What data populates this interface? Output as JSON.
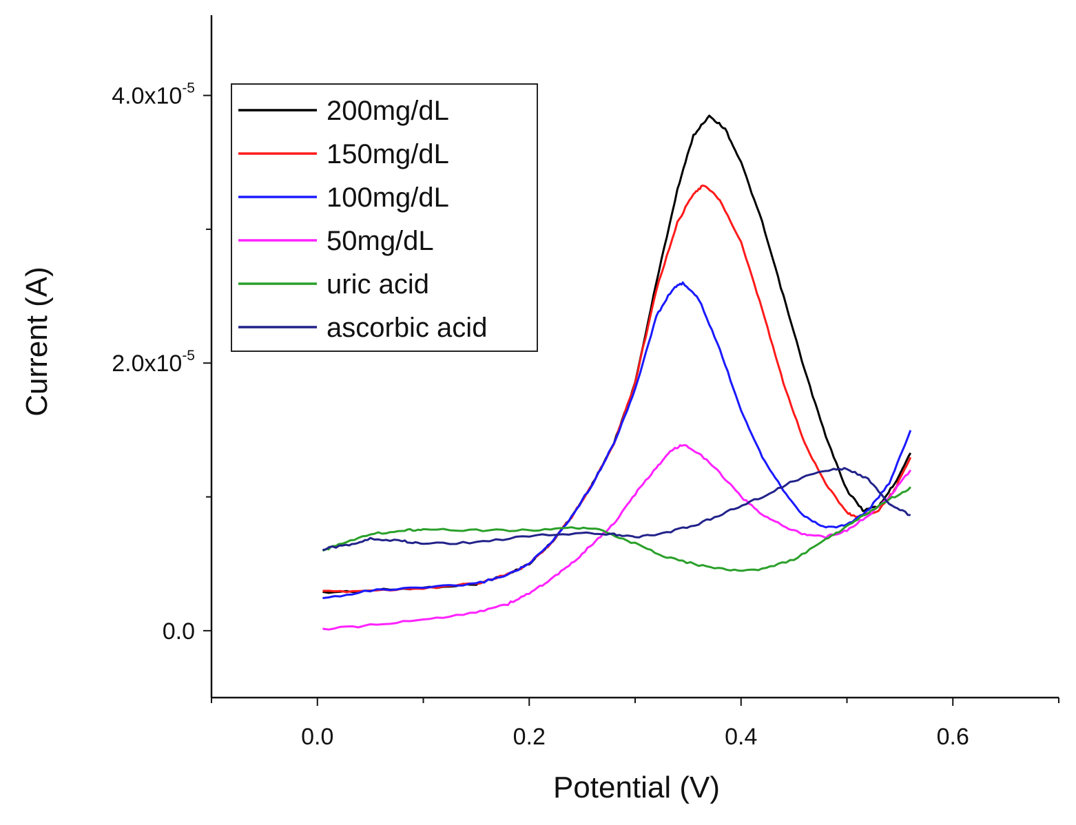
{
  "chart_data": {
    "type": "line",
    "title": "",
    "xlabel": "Potential (V)",
    "ylabel": "Current (A)",
    "xlim": [
      -0.1,
      0.7
    ],
    "ylim": [
      -5e-06,
      4.6e-05
    ],
    "x_ticks": [
      {
        "value": 0.0,
        "label": "0.0"
      },
      {
        "value": 0.2,
        "label": "0.2"
      },
      {
        "value": 0.4,
        "label": "0.4"
      },
      {
        "value": 0.6,
        "label": "0.6"
      }
    ],
    "y_ticks": [
      {
        "value": 0.0,
        "mantissa": "0.0",
        "exponent": ""
      },
      {
        "value": 2e-05,
        "mantissa": "2.0x10",
        "exponent": "-5"
      },
      {
        "value": 4e-05,
        "mantissa": "4.0x10",
        "exponent": "-5"
      }
    ],
    "grid": false,
    "legend_position": "top-left",
    "series": [
      {
        "name": "200mg/dL",
        "color": "#000000",
        "points": [
          [
            0.005,
            2.85e-06
          ],
          [
            0.05,
            3e-06
          ],
          [
            0.1,
            3.2e-06
          ],
          [
            0.15,
            3.5e-06
          ],
          [
            0.18,
            4.2e-06
          ],
          [
            0.2,
            5e-06
          ],
          [
            0.22,
            6.5e-06
          ],
          [
            0.24,
            8.5e-06
          ],
          [
            0.26,
            1.1e-05
          ],
          [
            0.28,
            1.4e-05
          ],
          [
            0.3,
            1.85e-05
          ],
          [
            0.32,
            2.6e-05
          ],
          [
            0.34,
            3.3e-05
          ],
          [
            0.355,
            3.7e-05
          ],
          [
            0.37,
            3.85e-05
          ],
          [
            0.385,
            3.75e-05
          ],
          [
            0.4,
            3.5e-05
          ],
          [
            0.42,
            3.05e-05
          ],
          [
            0.44,
            2.5e-05
          ],
          [
            0.46,
            1.95e-05
          ],
          [
            0.48,
            1.45e-05
          ],
          [
            0.5,
            1.05e-05
          ],
          [
            0.515,
            9e-06
          ],
          [
            0.53,
            9.3e-06
          ],
          [
            0.545,
            1.1e-05
          ],
          [
            0.56,
            1.33e-05
          ]
        ]
      },
      {
        "name": "150mg/dL",
        "color": "#ff1a1a",
        "points": [
          [
            0.005,
            2.9e-06
          ],
          [
            0.05,
            3e-06
          ],
          [
            0.1,
            3.2e-06
          ],
          [
            0.15,
            3.5e-06
          ],
          [
            0.18,
            4.2e-06
          ],
          [
            0.2,
            5e-06
          ],
          [
            0.22,
            6.5e-06
          ],
          [
            0.24,
            8.5e-06
          ],
          [
            0.26,
            1.1e-05
          ],
          [
            0.28,
            1.4e-05
          ],
          [
            0.3,
            1.85e-05
          ],
          [
            0.32,
            2.55e-05
          ],
          [
            0.34,
            3.05e-05
          ],
          [
            0.355,
            3.27e-05
          ],
          [
            0.365,
            3.33e-05
          ],
          [
            0.38,
            3.22e-05
          ],
          [
            0.4,
            2.9e-05
          ],
          [
            0.42,
            2.4e-05
          ],
          [
            0.44,
            1.85e-05
          ],
          [
            0.46,
            1.4e-05
          ],
          [
            0.48,
            1.1e-05
          ],
          [
            0.5,
            8.8e-06
          ],
          [
            0.51,
            8.5e-06
          ],
          [
            0.53,
            9e-06
          ],
          [
            0.545,
            1.05e-05
          ],
          [
            0.56,
            1.3e-05
          ]
        ]
      },
      {
        "name": "100mg/dL",
        "color": "#1a1aff",
        "points": [
          [
            0.005,
            2.4e-06
          ],
          [
            0.05,
            3e-06
          ],
          [
            0.1,
            3.2e-06
          ],
          [
            0.15,
            3.5e-06
          ],
          [
            0.18,
            4.2e-06
          ],
          [
            0.2,
            5e-06
          ],
          [
            0.22,
            6.5e-06
          ],
          [
            0.24,
            8.5e-06
          ],
          [
            0.26,
            1.1e-05
          ],
          [
            0.28,
            1.4e-05
          ],
          [
            0.3,
            1.8e-05
          ],
          [
            0.32,
            2.35e-05
          ],
          [
            0.335,
            2.55e-05
          ],
          [
            0.345,
            2.6e-05
          ],
          [
            0.36,
            2.48e-05
          ],
          [
            0.38,
            2.1e-05
          ],
          [
            0.4,
            1.65e-05
          ],
          [
            0.42,
            1.3e-05
          ],
          [
            0.44,
            1.05e-05
          ],
          [
            0.46,
            8.5e-06
          ],
          [
            0.48,
            7.7e-06
          ],
          [
            0.5,
            7.9e-06
          ],
          [
            0.52,
            9e-06
          ],
          [
            0.54,
            1.1e-05
          ],
          [
            0.56,
            1.5e-05
          ]
        ]
      },
      {
        "name": "50mg/dL",
        "color": "#ff22ff",
        "points": [
          [
            0.005,
            1e-07
          ],
          [
            0.05,
            4e-07
          ],
          [
            0.1,
            8e-07
          ],
          [
            0.15,
            1.4e-06
          ],
          [
            0.18,
            2e-06
          ],
          [
            0.2,
            2.8e-06
          ],
          [
            0.22,
            3.8e-06
          ],
          [
            0.24,
            5e-06
          ],
          [
            0.26,
            6.5e-06
          ],
          [
            0.28,
            8e-06
          ],
          [
            0.3,
            1.02e-05
          ],
          [
            0.32,
            1.22e-05
          ],
          [
            0.335,
            1.35e-05
          ],
          [
            0.345,
            1.39e-05
          ],
          [
            0.36,
            1.33e-05
          ],
          [
            0.38,
            1.18e-05
          ],
          [
            0.4,
            1e-05
          ],
          [
            0.42,
            8.7e-06
          ],
          [
            0.44,
            7.8e-06
          ],
          [
            0.46,
            7.2e-06
          ],
          [
            0.48,
            7e-06
          ],
          [
            0.5,
            7.5e-06
          ],
          [
            0.52,
            8.6e-06
          ],
          [
            0.54,
            1e-05
          ],
          [
            0.56,
            1.2e-05
          ]
        ]
      },
      {
        "name": "uric acid",
        "color": "#2aa02a",
        "points": [
          [
            0.005,
            5.9e-06
          ],
          [
            0.02,
            6.5e-06
          ],
          [
            0.05,
            7.2e-06
          ],
          [
            0.08,
            7.5e-06
          ],
          [
            0.1,
            7.6e-06
          ],
          [
            0.15,
            7.5e-06
          ],
          [
            0.2,
            7.5e-06
          ],
          [
            0.24,
            7.7e-06
          ],
          [
            0.27,
            7.5e-06
          ],
          [
            0.3,
            6.5e-06
          ],
          [
            0.33,
            5.5e-06
          ],
          [
            0.36,
            4.9e-06
          ],
          [
            0.39,
            4.5e-06
          ],
          [
            0.42,
            4.6e-06
          ],
          [
            0.45,
            5.3e-06
          ],
          [
            0.48,
            6.8e-06
          ],
          [
            0.5,
            7.8e-06
          ],
          [
            0.52,
            8.8e-06
          ],
          [
            0.54,
            9.8e-06
          ],
          [
            0.56,
            1.07e-05
          ]
        ]
      },
      {
        "name": "ascorbic acid",
        "color": "#22228a",
        "points": [
          [
            0.005,
            6.1e-06
          ],
          [
            0.03,
            6.4e-06
          ],
          [
            0.05,
            6.9e-06
          ],
          [
            0.08,
            6.7e-06
          ],
          [
            0.1,
            6.5e-06
          ],
          [
            0.15,
            6.6e-06
          ],
          [
            0.2,
            7.1e-06
          ],
          [
            0.25,
            7.3e-06
          ],
          [
            0.28,
            7.2e-06
          ],
          [
            0.3,
            7e-06
          ],
          [
            0.33,
            7.3e-06
          ],
          [
            0.36,
            8e-06
          ],
          [
            0.39,
            9e-06
          ],
          [
            0.42,
            1e-05
          ],
          [
            0.45,
            1.12e-05
          ],
          [
            0.48,
            1.2e-05
          ],
          [
            0.5,
            1.21e-05
          ],
          [
            0.52,
            1.13e-05
          ],
          [
            0.54,
            9.5e-06
          ],
          [
            0.56,
            8.6e-06
          ]
        ]
      }
    ]
  }
}
